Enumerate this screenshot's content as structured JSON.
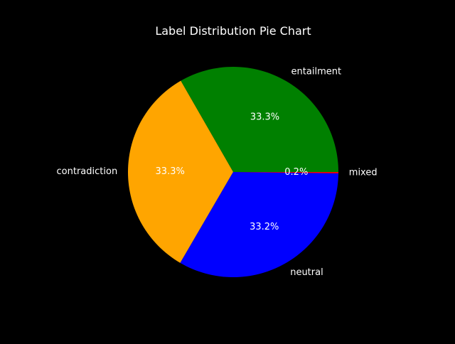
{
  "chart_data": {
    "type": "pie",
    "title": "Label Distribution Pie Chart",
    "background": "#000000",
    "text_color": "#ffffff",
    "start_angle_deg": 0,
    "direction": "counterclockwise",
    "slices": [
      {
        "label": "entailment",
        "value": 33.3,
        "pct_text": "33.3%",
        "color": "#008000"
      },
      {
        "label": "contradiction",
        "value": 33.3,
        "pct_text": "33.3%",
        "color": "#FFA500"
      },
      {
        "label": "neutral",
        "value": 33.2,
        "pct_text": "33.2%",
        "color": "#0000FF"
      },
      {
        "label": "mixed",
        "value": 0.2,
        "pct_text": "0.2%",
        "color": "#FF0000"
      }
    ]
  }
}
